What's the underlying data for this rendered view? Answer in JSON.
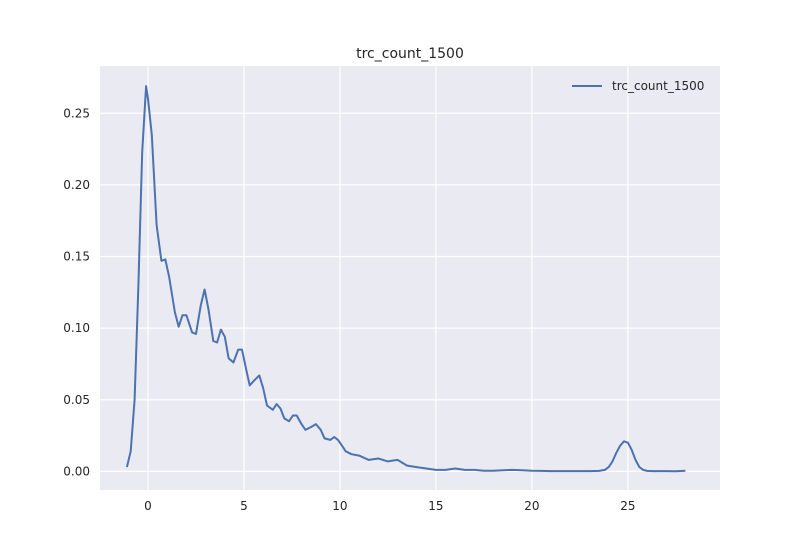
{
  "chart_data": {
    "type": "line",
    "title": "trc_count_1500",
    "xlabel": "",
    "ylabel": "",
    "xlim": [
      -2.5,
      29.8
    ],
    "ylim": [
      -0.013,
      0.283
    ],
    "xticks": [
      0,
      5,
      10,
      15,
      20,
      25
    ],
    "yticks": [
      0.0,
      0.05,
      0.1,
      0.15,
      0.2,
      0.25
    ],
    "xtick_labels": [
      "0",
      "5",
      "10",
      "15",
      "20",
      "25"
    ],
    "ytick_labels": [
      "0.00",
      "0.05",
      "0.10",
      "0.15",
      "0.20",
      "0.25"
    ],
    "grid": true,
    "legend_position": "top-right",
    "series": [
      {
        "name": "trc_count_1500",
        "color": "#4c72b0",
        "x": [
          -1.1,
          -0.9,
          -0.7,
          -0.5,
          -0.3,
          -0.1,
          0.0,
          0.2,
          0.45,
          0.7,
          0.9,
          1.1,
          1.4,
          1.6,
          1.8,
          2.0,
          2.3,
          2.5,
          2.75,
          2.95,
          3.15,
          3.4,
          3.6,
          3.8,
          4.0,
          4.2,
          4.45,
          4.7,
          4.9,
          5.1,
          5.3,
          5.5,
          5.8,
          6.0,
          6.2,
          6.5,
          6.7,
          6.9,
          7.1,
          7.35,
          7.55,
          7.75,
          8.0,
          8.2,
          8.5,
          8.75,
          9.0,
          9.2,
          9.5,
          9.7,
          9.9,
          10.1,
          10.3,
          10.6,
          11.0,
          11.5,
          12.0,
          12.5,
          13.0,
          13.5,
          14.0,
          14.5,
          15.0,
          15.5,
          16.0,
          16.5,
          17.0,
          17.5,
          18.0,
          18.5,
          19.0,
          19.5,
          20.0,
          20.5,
          21.0,
          21.5,
          22.0,
          22.5,
          23.0,
          23.5,
          23.8,
          24.0,
          24.2,
          24.4,
          24.6,
          24.8,
          25.0,
          25.2,
          25.4,
          25.6,
          25.8,
          26.0,
          26.3,
          26.6,
          27.0,
          27.5,
          28.0
        ],
        "y": [
          0.003,
          0.014,
          0.05,
          0.13,
          0.223,
          0.269,
          0.26,
          0.235,
          0.172,
          0.147,
          0.148,
          0.136,
          0.111,
          0.101,
          0.109,
          0.109,
          0.097,
          0.096,
          0.116,
          0.127,
          0.113,
          0.091,
          0.09,
          0.099,
          0.094,
          0.079,
          0.076,
          0.085,
          0.085,
          0.072,
          0.06,
          0.063,
          0.067,
          0.058,
          0.046,
          0.043,
          0.047,
          0.044,
          0.037,
          0.035,
          0.039,
          0.039,
          0.033,
          0.029,
          0.031,
          0.033,
          0.029,
          0.023,
          0.022,
          0.024,
          0.022,
          0.018,
          0.014,
          0.012,
          0.011,
          0.008,
          0.009,
          0.007,
          0.008,
          0.004,
          0.003,
          0.002,
          0.001,
          0.001,
          0.002,
          0.001,
          0.001,
          0.0005,
          0.0005,
          0.0008,
          0.001,
          0.0008,
          0.0005,
          0.0003,
          0.0002,
          0.0002,
          0.0002,
          0.0002,
          0.0002,
          0.0003,
          0.001,
          0.003,
          0.007,
          0.013,
          0.018,
          0.021,
          0.02,
          0.015,
          0.008,
          0.003,
          0.001,
          0.0003,
          0.0002,
          0.0002,
          0.0002,
          0.0001,
          0.0005
        ]
      }
    ]
  }
}
